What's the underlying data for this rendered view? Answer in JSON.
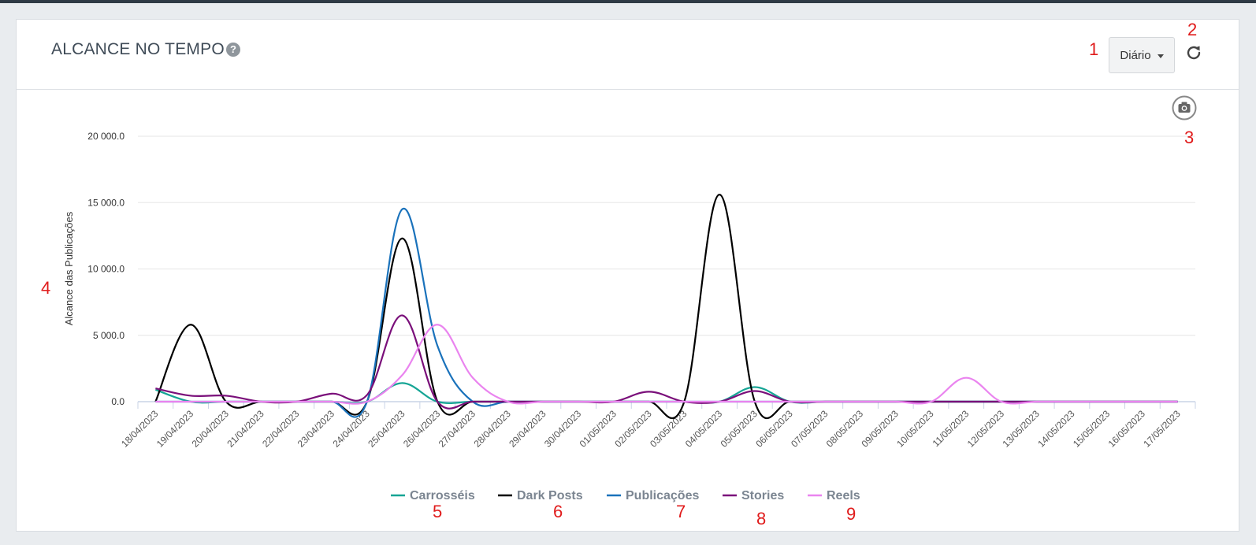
{
  "panel": {
    "title": "ALCANCE NO TEMPO",
    "help_icon": "question-circle-icon",
    "period_dropdown": {
      "selected": "Diário"
    },
    "refresh_icon": "refresh-icon",
    "export_icon": "camera-icon"
  },
  "annotations": [
    "1",
    "2",
    "3",
    "4",
    "5",
    "6",
    "7",
    "8",
    "9"
  ],
  "chart_data": {
    "type": "line",
    "title": "",
    "ylabel": "Alcance das Publicações",
    "xlabel": "",
    "ylim": [
      0,
      20000
    ],
    "yticks": [
      "0.0",
      "5 000.0",
      "10 000.0",
      "15 000.0",
      "20 000.0"
    ],
    "grid": true,
    "legend_position": "bottom",
    "categories": [
      "18/04/2023",
      "19/04/2023",
      "20/04/2023",
      "21/04/2023",
      "22/04/2023",
      "23/04/2023",
      "24/04/2023",
      "25/04/2023",
      "26/04/2023",
      "27/04/2023",
      "28/04/2023",
      "29/04/2023",
      "30/04/2023",
      "01/05/2023",
      "02/05/2023",
      "03/05/2023",
      "04/05/2023",
      "05/05/2023",
      "06/05/2023",
      "07/05/2023",
      "08/05/2023",
      "09/05/2023",
      "10/05/2023",
      "11/05/2023",
      "12/05/2023",
      "13/05/2023",
      "14/05/2023",
      "15/05/2023",
      "16/05/2023",
      "17/05/2023"
    ],
    "series": [
      {
        "name": "Carrosséis",
        "color": "#16a595",
        "values": [
          900,
          0,
          0,
          0,
          0,
          0,
          0,
          1400,
          0,
          0,
          0,
          0,
          0,
          0,
          0,
          0,
          0,
          1100,
          0,
          0,
          0,
          0,
          0,
          0,
          0,
          0,
          0,
          0,
          0,
          0
        ]
      },
      {
        "name": "Dark Posts",
        "color": "#000000",
        "values": [
          0,
          5800,
          0,
          0,
          0,
          0,
          0,
          12300,
          0,
          0,
          0,
          0,
          0,
          0,
          0,
          0,
          15600,
          0,
          0,
          0,
          0,
          0,
          0,
          0,
          0,
          0,
          0,
          0,
          0,
          0
        ]
      },
      {
        "name": "Publicações",
        "color": "#1a72bb",
        "values": [
          0,
          0,
          0,
          0,
          0,
          0,
          0,
          14500,
          4200,
          0,
          0,
          0,
          0,
          0,
          0,
          0,
          0,
          0,
          0,
          0,
          0,
          0,
          0,
          0,
          0,
          0,
          0,
          0,
          0,
          0
        ]
      },
      {
        "name": "Stories",
        "color": "#7a0f7a",
        "values": [
          1000,
          450,
          450,
          0,
          0,
          600,
          500,
          6500,
          0,
          0,
          0,
          0,
          0,
          0,
          750,
          0,
          0,
          800,
          0,
          0,
          0,
          0,
          0,
          0,
          0,
          0,
          0,
          0,
          0,
          0
        ]
      },
      {
        "name": "Reels",
        "color": "#ea84ef",
        "values": [
          0,
          0,
          0,
          0,
          0,
          0,
          0,
          2000,
          5800,
          1800,
          0,
          0,
          0,
          0,
          0,
          0,
          0,
          0,
          0,
          0,
          0,
          0,
          0,
          1800,
          0,
          0,
          0,
          0,
          0,
          0
        ]
      }
    ]
  }
}
